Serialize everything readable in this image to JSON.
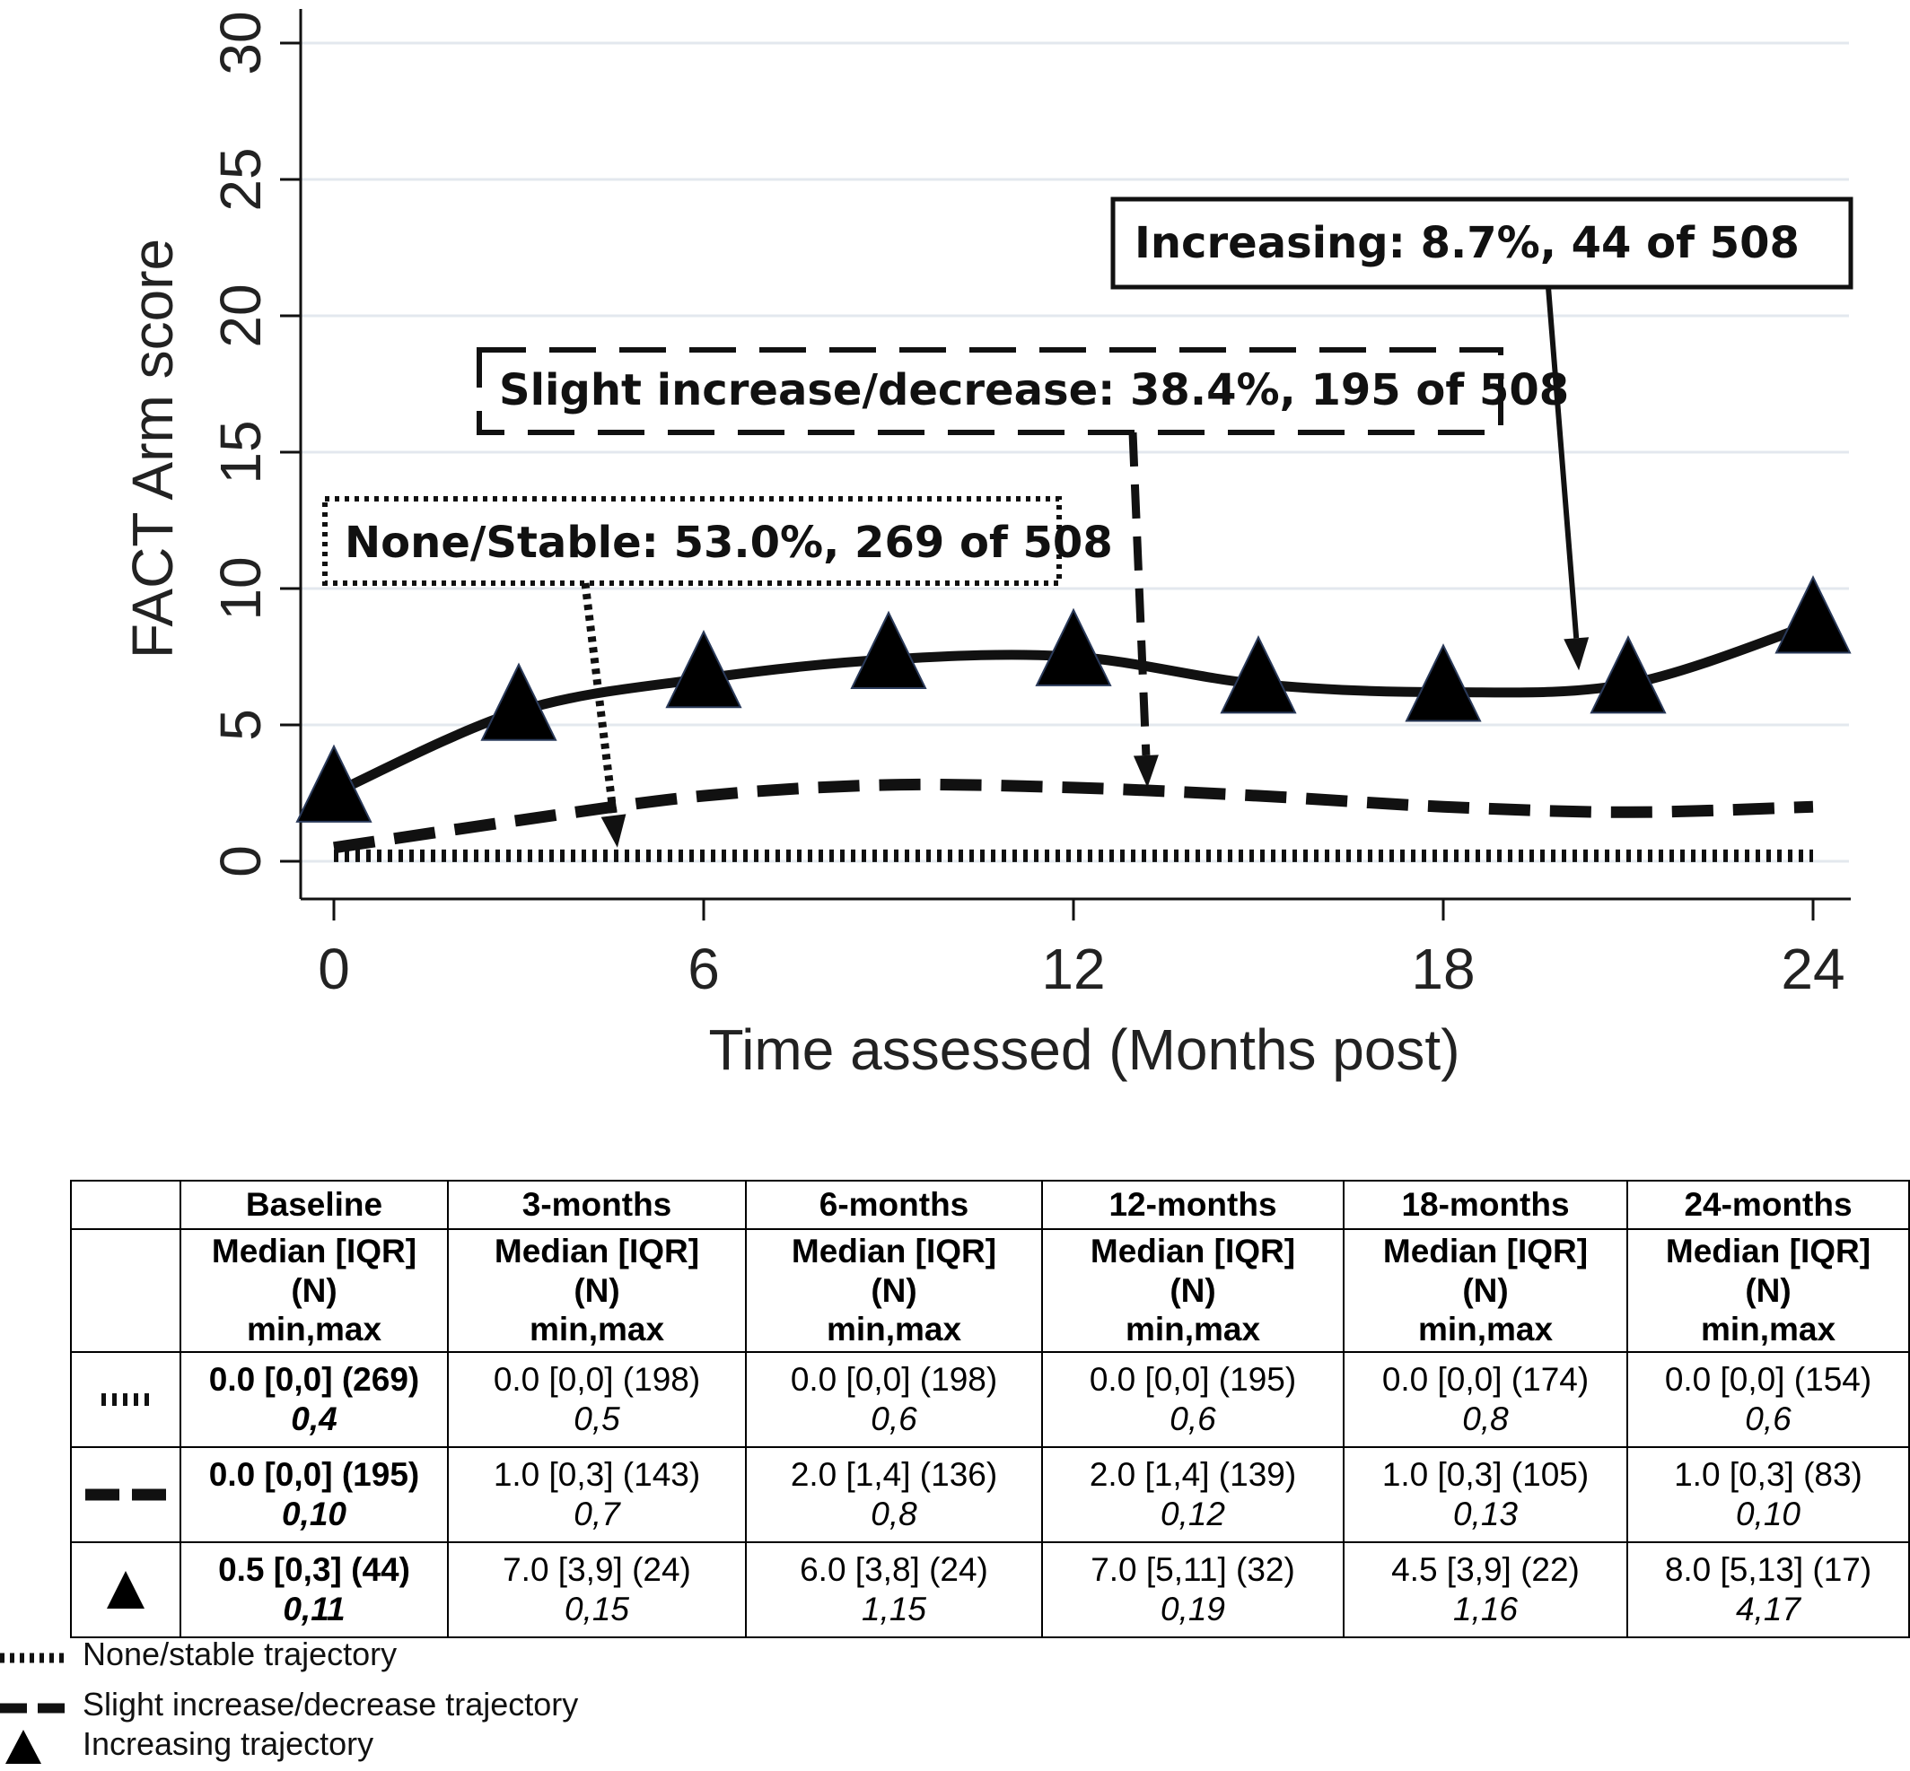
{
  "chart_data": {
    "type": "line",
    "xlabel": "Time assessed (Months post)",
    "ylabel": "FACT Arm score",
    "xlim": [
      0,
      24
    ],
    "ylim": [
      0,
      30
    ],
    "x_ticks": [
      "0",
      "6",
      "12",
      "18",
      "24"
    ],
    "y_ticks": [
      "0",
      "5",
      "10",
      "15",
      "20",
      "25",
      "30"
    ],
    "grid": "horizontal",
    "series": [
      {
        "style": "dotted",
        "x": [
          0,
          3,
          6,
          9,
          12,
          15,
          18,
          21,
          24
        ],
        "y": [
          0.2,
          0.2,
          0.2,
          0.2,
          0.2,
          0.2,
          0.2,
          0.2,
          0.2
        ]
      },
      {
        "style": "dashed",
        "x": [
          0,
          3,
          6,
          9,
          12,
          15,
          18,
          21,
          24
        ],
        "y": [
          0.5,
          1.5,
          2.4,
          2.8,
          2.7,
          2.4,
          2.0,
          1.8,
          2.0
        ]
      },
      {
        "style": "solid-triangles",
        "x": [
          0,
          3,
          6,
          9,
          12,
          15,
          18,
          21,
          24
        ],
        "y": [
          2.5,
          5.5,
          6.7,
          7.4,
          7.5,
          6.5,
          6.2,
          6.5,
          8.7
        ]
      }
    ],
    "annotations": [
      {
        "text": "Increasing: 8.7%, 44 of 508",
        "box": "solid",
        "points_to": [
          20.2,
          7.0
        ]
      },
      {
        "text": "Slight increase/decrease: 38.4%, 195 of 508",
        "box": "dashed",
        "points_to": [
          13.2,
          2.7
        ]
      },
      {
        "text": "None/Stable: 53.0%, 269 of 508",
        "box": "dotted",
        "points_to": [
          4.6,
          0.5
        ]
      }
    ]
  },
  "table": {
    "headers": [
      "Baseline",
      "3-months",
      "6-months",
      "12-months",
      "18-months",
      "24-months"
    ],
    "stat_header": [
      "Median [IQR]",
      "(N)",
      "min,max"
    ],
    "rows": [
      {
        "symbol": "dotted",
        "cells": [
          [
            "0.0 [0,0] (269)",
            "0,4"
          ],
          [
            "0.0 [0,0] (198)",
            "0,5"
          ],
          [
            "0.0 [0,0] (198)",
            "0,6"
          ],
          [
            "0.0 [0,0] (195)",
            "0,6"
          ],
          [
            "0.0 [0,0] (174)",
            "0,8"
          ],
          [
            "0.0 [0,0] (154)",
            "0,6"
          ]
        ]
      },
      {
        "symbol": "dashed",
        "cells": [
          [
            "0.0 [0,0] (195)",
            "0,10"
          ],
          [
            "1.0 [0,3] (143)",
            "0,7"
          ],
          [
            "2.0 [1,4] (136)",
            "0,8"
          ],
          [
            "2.0 [1,4] (139)",
            "0,12"
          ],
          [
            "1.0 [0,3] (105)",
            "0,13"
          ],
          [
            "1.0 [0,3] (83)",
            "0,10"
          ]
        ]
      },
      {
        "symbol": "triangle",
        "cells": [
          [
            "0.5 [0,3] (44)",
            "0,11"
          ],
          [
            "7.0 [3,9] (24)",
            "0,15"
          ],
          [
            "6.0 [3,8] (24)",
            "1,15"
          ],
          [
            "7.0 [5,11] (32)",
            "0,19"
          ],
          [
            "4.5 [3,9] (22)",
            "1,16"
          ],
          [
            "8.0 [5,13] (17)",
            "4,17"
          ]
        ]
      }
    ]
  },
  "legend": [
    {
      "symbol": "dotted",
      "label": "None/stable trajectory"
    },
    {
      "symbol": "dashed",
      "label": "Slight increase/decrease trajectory"
    },
    {
      "symbol": "triangle",
      "label": "Increasing trajectory"
    }
  ]
}
